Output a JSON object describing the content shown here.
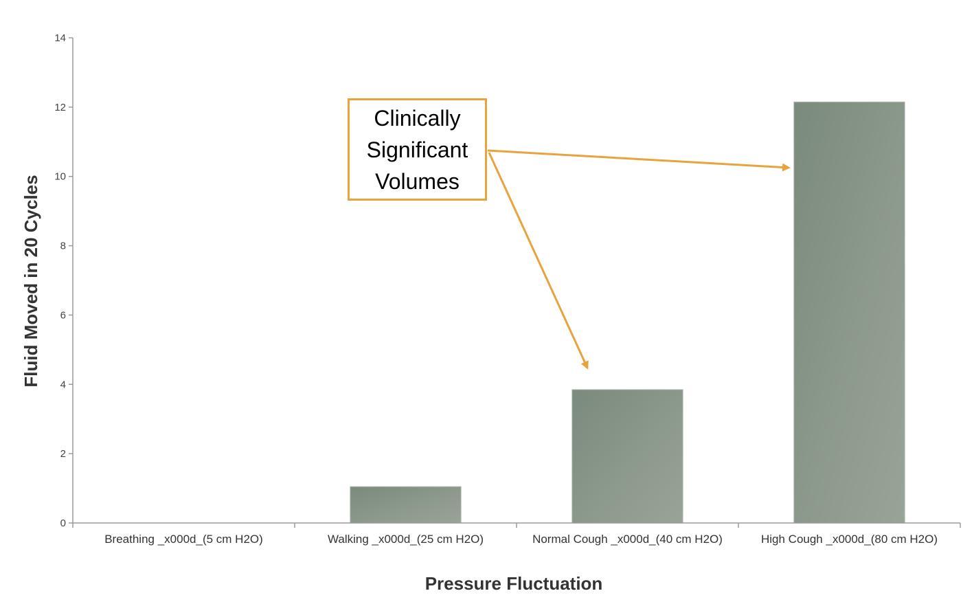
{
  "chart_data": {
    "type": "bar",
    "title": "",
    "xlabel": "Pressure Fluctuation",
    "ylabel": "Fluid Moved in 20 Cycles",
    "ylim": [
      0,
      14
    ],
    "yticks": [
      "0",
      "2",
      "4",
      "6",
      "8",
      "10",
      "12",
      "14"
    ],
    "categories": [
      "Breathing _x000d_(5 cm H2O)",
      "Walking _x000d_(25 cm H2O)",
      "Normal Cough _x000d_(40 cm H2O)",
      "High Cough _x000d_(80 cm H2O)"
    ],
    "values": [
      0,
      1.05,
      3.85,
      12.15
    ],
    "grid": false,
    "legend": "none",
    "bar_color": "#8A968A",
    "annotation": {
      "text": "Clinically Significant Volumes",
      "color": "#E8A33D",
      "points_to": [
        "Normal Cough _x000d_(40 cm H2O)",
        "High Cough _x000d_(80 cm H2O)"
      ]
    }
  }
}
